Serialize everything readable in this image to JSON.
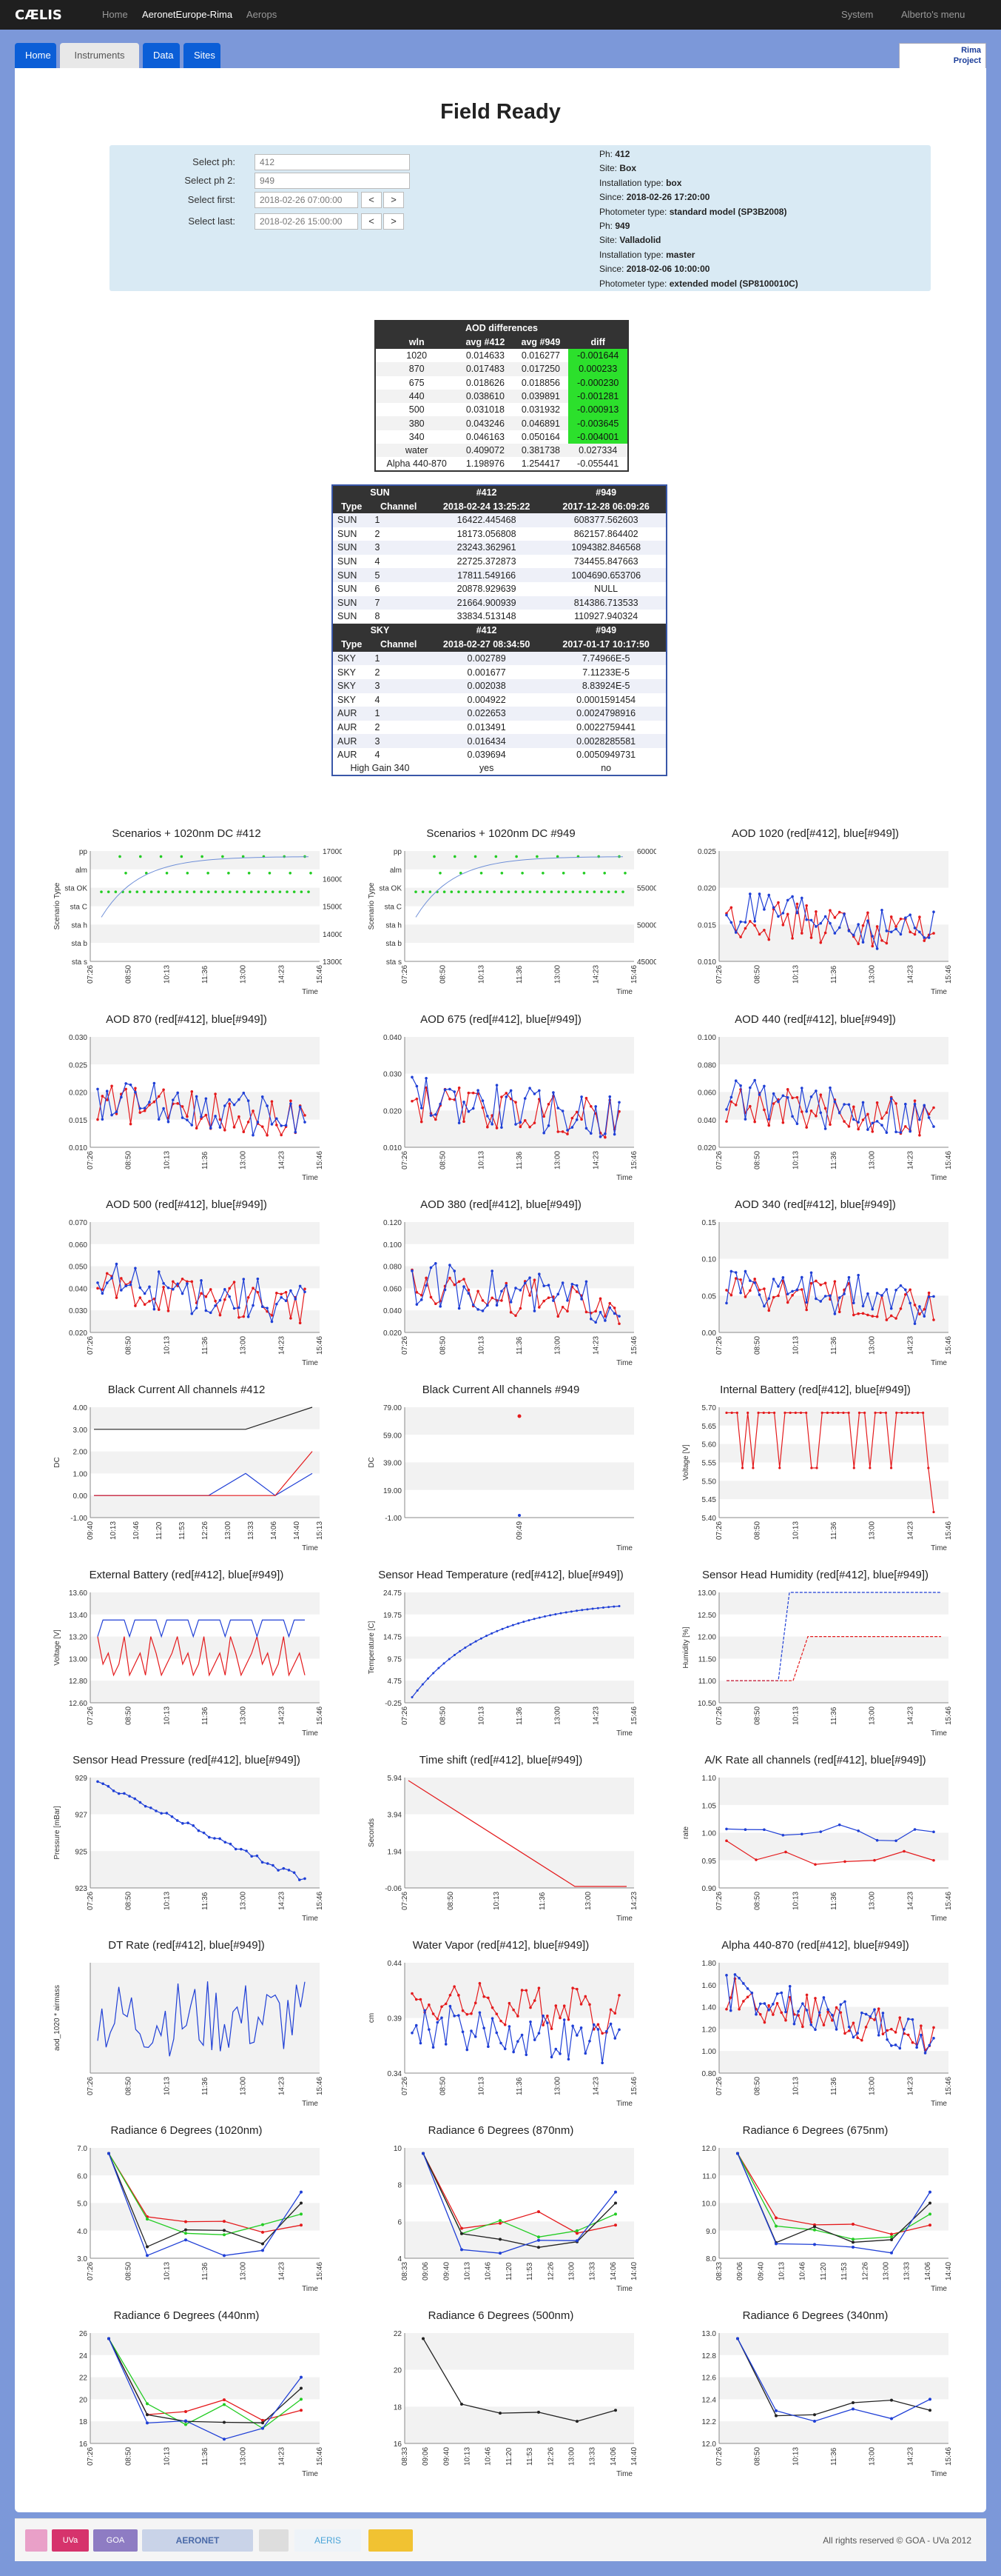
{
  "nav": {
    "logo": "CÆLIS",
    "items": [
      "Home",
      "AeronetEurope-Rima",
      "Aerops"
    ],
    "system": "System",
    "user": "Alberto's menu"
  },
  "tabs": [
    "Home",
    "Instruments",
    "Data",
    "Sites"
  ],
  "project": {
    "line1": "Rima",
    "line2": "Project"
  },
  "page_title": "Field Ready",
  "selectors": {
    "labels": [
      "Select ph:",
      "Select ph 2:",
      "Select first:",
      "Select last:"
    ],
    "ph1": "412",
    "ph2": "949",
    "first": "2018-02-26 07:00:00",
    "last": "2018-02-26 15:00:00",
    "prev": "<",
    "next": ">"
  },
  "info": [
    [
      "Ph: ",
      "412"
    ],
    [
      "Site: ",
      "Box"
    ],
    [
      "Installation type: ",
      "box"
    ],
    [
      "Since: ",
      "2018-02-26 17:20:00"
    ],
    [
      "Photometer type: ",
      "standard model (SP3B2008)"
    ],
    [
      "Ph: ",
      "949"
    ],
    [
      "Site: ",
      "Valladolid"
    ],
    [
      "Installation type: ",
      "master"
    ],
    [
      "Since: ",
      "2018-02-06 10:00:00"
    ],
    [
      "Photometer type: ",
      "extended model (SP8100010C)"
    ]
  ],
  "aod_table": {
    "title": "AOD differences",
    "headers": [
      "wln",
      "avg #412",
      "avg #949",
      "diff"
    ],
    "rows": [
      [
        "1020",
        "0.014633",
        "0.016277",
        "-0.001644",
        true
      ],
      [
        "870",
        "0.017483",
        "0.017250",
        "0.000233",
        true
      ],
      [
        "675",
        "0.018626",
        "0.018856",
        "-0.000230",
        true
      ],
      [
        "440",
        "0.038610",
        "0.039891",
        "-0.001281",
        true
      ],
      [
        "500",
        "0.031018",
        "0.031932",
        "-0.000913",
        true
      ],
      [
        "380",
        "0.043246",
        "0.046891",
        "-0.003645",
        true
      ],
      [
        "340",
        "0.046163",
        "0.050164",
        "-0.004001",
        true
      ],
      [
        "water",
        "0.409072",
        "0.381738",
        "0.027334",
        false
      ],
      [
        "Alpha 440-870",
        "1.198976",
        "1.254417",
        "-0.055441",
        false
      ]
    ]
  },
  "sun_table": {
    "sun_head": [
      "SUN",
      "#412",
      "#949"
    ],
    "sun_dates": [
      "Type",
      "Channel",
      "2018-02-24 13:25:22",
      "2017-12-28 06:09:26"
    ],
    "sun_rows": [
      [
        "SUN",
        "1",
        "16422.445468",
        "608377.562603"
      ],
      [
        "SUN",
        "2",
        "18173.056808",
        "862157.864402"
      ],
      [
        "SUN",
        "3",
        "23243.362961",
        "1094382.846568"
      ],
      [
        "SUN",
        "4",
        "22725.372873",
        "734455.847663"
      ],
      [
        "SUN",
        "5",
        "17811.549166",
        "1004690.653706"
      ],
      [
        "SUN",
        "6",
        "20878.929639",
        "NULL"
      ],
      [
        "SUN",
        "7",
        "21664.900939",
        "814386.713533"
      ],
      [
        "SUN",
        "8",
        "33834.513148",
        "110927.940324"
      ]
    ],
    "sky_head": [
      "SKY",
      "#412",
      "#949"
    ],
    "sky_dates": [
      "Type",
      "Channel",
      "2018-02-27 08:34:50",
      "2017-01-17 10:17:50"
    ],
    "sky_rows": [
      [
        "SKY",
        "1",
        "0.002789",
        "7.74966E-5"
      ],
      [
        "SKY",
        "2",
        "0.001677",
        "7.11233E-5"
      ],
      [
        "SKY",
        "3",
        "0.002038",
        "8.83924E-5"
      ],
      [
        "SKY",
        "4",
        "0.004922",
        "0.0001591454"
      ],
      [
        "AUR",
        "1",
        "0.022653",
        "0.0024798916"
      ],
      [
        "AUR",
        "2",
        "0.013491",
        "0.0022759441"
      ],
      [
        "AUR",
        "3",
        "0.016434",
        "0.0028285581"
      ],
      [
        "AUR",
        "4",
        "0.039694",
        "0.0050949731"
      ]
    ],
    "gain": [
      "High Gain 340",
      "yes",
      "no"
    ]
  },
  "colors": {
    "red": "#e41a1c",
    "blue": "#1f3fd6",
    "green": "#22cc22",
    "black": "#222222"
  },
  "charts": [
    {
      "t": "Scenarios + 1020nm DC #412",
      "kind": "scen",
      "yt": [
        "pp",
        "alm",
        "sta OK",
        "sta C",
        "sta h",
        "sta b",
        "sta s"
      ],
      "y2": [
        "17000",
        "16000",
        "15000",
        "14000",
        "13000"
      ],
      "xt": [
        "07:26",
        "08:50",
        "10:13",
        "11:36",
        "13:00",
        "14:23",
        "15:46"
      ],
      "xl": "Time",
      "yl": "Scenario Type"
    },
    {
      "t": "Scenarios + 1020nm DC #949",
      "kind": "scen",
      "yt": [
        "pp",
        "alm",
        "sta OK",
        "sta C",
        "sta h",
        "sta b",
        "sta s"
      ],
      "y2": [
        "600000",
        "550000",
        "500000",
        "450000"
      ],
      "xt": [
        "07:26",
        "08:50",
        "10:13",
        "11:36",
        "13:00",
        "14:23",
        "15:46"
      ],
      "xl": "Time",
      "yl": "Scenario Type"
    },
    {
      "t": "AOD 1020 (red[#412], blue[#949])",
      "kind": "aod",
      "yt": [
        "0.025",
        "0.020",
        "0.015",
        "0.010"
      ],
      "xt": [
        "07:26",
        "08:50",
        "10:13",
        "11:36",
        "13:00",
        "14:23",
        "15:46"
      ],
      "xl": "Time",
      "yl": ""
    },
    {
      "t": "AOD 870 (red[#412], blue[#949])",
      "kind": "aod",
      "yt": [
        "0.030",
        "0.025",
        "0.020",
        "0.015",
        "0.010"
      ],
      "xt": [
        "07:26",
        "08:50",
        "10:13",
        "11:36",
        "13:00",
        "14:23",
        "15:46"
      ],
      "xl": "Time",
      "yl": ""
    },
    {
      "t": "AOD 675 (red[#412], blue[#949])",
      "kind": "aod",
      "yt": [
        "0.040",
        "0.030",
        "0.020",
        "0.010"
      ],
      "xt": [
        "07:26",
        "08:50",
        "10:13",
        "11:36",
        "13:00",
        "14:23",
        "15:46"
      ],
      "xl": "Time",
      "yl": ""
    },
    {
      "t": "AOD 440 (red[#412], blue[#949])",
      "kind": "aod",
      "yt": [
        "0.100",
        "0.080",
        "0.060",
        "0.040",
        "0.020"
      ],
      "xt": [
        "07:26",
        "08:50",
        "10:13",
        "11:36",
        "13:00",
        "14:23",
        "15:46"
      ],
      "xl": "Time",
      "yl": ""
    },
    {
      "t": "AOD 500 (red[#412], blue[#949])",
      "kind": "aod",
      "yt": [
        "0.070",
        "0.060",
        "0.050",
        "0.040",
        "0.030",
        "0.020"
      ],
      "xt": [
        "07:26",
        "08:50",
        "10:13",
        "11:36",
        "13:00",
        "14:23",
        "15:46"
      ],
      "xl": "Time",
      "yl": ""
    },
    {
      "t": "AOD 380 (red[#412], blue[#949])",
      "kind": "aod",
      "yt": [
        "0.120",
        "0.100",
        "0.080",
        "0.060",
        "0.040",
        "0.020"
      ],
      "xt": [
        "07:26",
        "08:50",
        "10:13",
        "11:36",
        "13:00",
        "14:23",
        "15:46"
      ],
      "xl": "Time",
      "yl": ""
    },
    {
      "t": "AOD 340 (red[#412], blue[#949])",
      "kind": "aod",
      "yt": [
        "0.15",
        "0.10",
        "0.05",
        "0.00"
      ],
      "xt": [
        "07:26",
        "08:50",
        "10:13",
        "11:36",
        "13:00",
        "14:23",
        "15:46"
      ],
      "xl": "Time",
      "yl": ""
    },
    {
      "t": "Black Current All channels #412",
      "kind": "bc",
      "yt": [
        "4.00",
        "3.00",
        "2.00",
        "1.00",
        "0.00",
        "-1.00"
      ],
      "xt": [
        "09:40",
        "10:13",
        "10:46",
        "11:20",
        "11:53",
        "12:26",
        "13:00",
        "13:33",
        "14:06",
        "14:40",
        "15:13"
      ],
      "xl": "Time",
      "yl": "DC"
    },
    {
      "t": "Black Current All channels #949",
      "kind": "bc2",
      "yt": [
        "79.00",
        "59.00",
        "39.00",
        "19.00",
        "-1.00"
      ],
      "xt": [
        "09:49"
      ],
      "xl": "Time",
      "yl": "DC"
    },
    {
      "t": "Internal Battery (red[#412], blue[#949])",
      "kind": "ibat",
      "yt": [
        "5.70",
        "5.65",
        "5.60",
        "5.55",
        "5.50",
        "5.45",
        "5.40"
      ],
      "xt": [
        "07:26",
        "08:50",
        "10:13",
        "11:36",
        "13:00",
        "14:23",
        "15:46"
      ],
      "xl": "Time",
      "yl": "Voltage [V]"
    },
    {
      "t": "External Battery (red[#412], blue[#949])",
      "kind": "ebat",
      "yt": [
        "13.60",
        "13.40",
        "13.20",
        "13.00",
        "12.80",
        "12.60"
      ],
      "xt": [
        "07:26",
        "08:50",
        "10:13",
        "11:36",
        "13:00",
        "14:23",
        "15:46"
      ],
      "xl": "Time",
      "yl": "Voltage [V]"
    },
    {
      "t": "Sensor Head Temperature (red[#412], blue[#949])",
      "kind": "temp",
      "yt": [
        "24.75",
        "19.75",
        "14.75",
        "9.75",
        "4.75",
        "-0.25"
      ],
      "xt": [
        "07:26",
        "08:50",
        "10:13",
        "11:36",
        "13:00",
        "14:23",
        "15:46"
      ],
      "xl": "Time",
      "yl": "Temperature [C]"
    },
    {
      "t": "Sensor Head Humidity (red[#412], blue[#949])",
      "kind": "hum",
      "yt": [
        "13.00",
        "12.50",
        "12.00",
        "11.50",
        "11.00",
        "10.50"
      ],
      "xt": [
        "07:26",
        "08:50",
        "10:13",
        "11:36",
        "13:00",
        "14:23",
        "15:46"
      ],
      "xl": "Time",
      "yl": "Humidity [%]"
    },
    {
      "t": "Sensor Head Pressure (red[#412], blue[#949])",
      "kind": "pres",
      "yt": [
        "929",
        "927",
        "925",
        "923"
      ],
      "xt": [
        "07:26",
        "08:50",
        "10:13",
        "11:36",
        "13:00",
        "14:23",
        "15:46"
      ],
      "xl": "Time",
      "yl": "Pressure [mBar]"
    },
    {
      "t": "Time shift (red[#412], blue[#949])",
      "kind": "tshift",
      "yt": [
        "5.94",
        "3.94",
        "1.94",
        "-0.06"
      ],
      "xt": [
        "07:26",
        "08:50",
        "10:13",
        "11:36",
        "13:00",
        "14:23"
      ],
      "xl": "Time",
      "yl": "Seconds"
    },
    {
      "t": "A/K Rate all channels (red[#412], blue[#949])",
      "kind": "ak",
      "yt": [
        "1.10",
        "1.05",
        "1.00",
        "0.95",
        "0.90"
      ],
      "xt": [
        "07:26",
        "08:50",
        "10:13",
        "11:36",
        "13:00",
        "14:23",
        "15:46"
      ],
      "xl": "Time",
      "yl": "rate"
    },
    {
      "t": "DT Rate (red[#412], blue[#949])",
      "kind": "dt",
      "yt": [],
      "xt": [
        "07:26",
        "08:50",
        "10:13",
        "11:36",
        "13:00",
        "14:23",
        "15:46"
      ],
      "xl": "Time",
      "yl": "aod_1020 * airmass"
    },
    {
      "t": "Water Vapor (red[#412], blue[#949])",
      "kind": "wv",
      "yt": [
        "0.44",
        "0.39",
        "0.34"
      ],
      "xt": [
        "07:26",
        "08:50",
        "10:13",
        "11:36",
        "13:00",
        "14:23",
        "15:46"
      ],
      "xl": "Time",
      "yl": "cm"
    },
    {
      "t": "Alpha 440-870 (red[#412], blue[#949])",
      "kind": "alpha",
      "yt": [
        "1.80",
        "1.60",
        "1.40",
        "1.20",
        "1.00",
        "0.80"
      ],
      "xt": [
        "07:26",
        "08:50",
        "10:13",
        "11:36",
        "13:00",
        "14:23",
        "15:46"
      ],
      "xl": "Time",
      "yl": ""
    },
    {
      "t": "Radiance 6 Degrees (1020nm)",
      "kind": "rad",
      "yt": [
        "7.0",
        "6.0",
        "5.0",
        "4.0",
        "3.0"
      ],
      "xt": [
        "07:26",
        "08:50",
        "10:13",
        "11:36",
        "13:00",
        "14:23",
        "15:46"
      ],
      "xl": "Time",
      "yl": ""
    },
    {
      "t": "Radiance 6 Degrees (870nm)",
      "kind": "rad",
      "yt": [
        "10",
        "8",
        "6",
        "4"
      ],
      "xt": [
        "08:33",
        "09:06",
        "09:40",
        "10:13",
        "10:46",
        "11:20",
        "11:53",
        "12:26",
        "13:00",
        "13:33",
        "14:06",
        "14:40"
      ],
      "xl": "Time",
      "yl": ""
    },
    {
      "t": "Radiance 6 Degrees (675nm)",
      "kind": "rad",
      "yt": [
        "12.0",
        "11.0",
        "10.0",
        "9.0",
        "8.0"
      ],
      "xt": [
        "08:33",
        "09:06",
        "09:40",
        "10:13",
        "10:46",
        "11:20",
        "11:53",
        "12:26",
        "13:00",
        "13:33",
        "14:06",
        "14:40"
      ],
      "xl": "Time",
      "yl": ""
    },
    {
      "t": "Radiance 6 Degrees (440nm)",
      "kind": "rad",
      "yt": [
        "26",
        "24",
        "22",
        "20",
        "18",
        "16"
      ],
      "xt": [
        "07:26",
        "08:50",
        "10:13",
        "11:36",
        "13:00",
        "14:23",
        "15:46"
      ],
      "xl": "Time",
      "yl": ""
    },
    {
      "t": "Radiance 6 Degrees (500nm)",
      "kind": "rad2",
      "yt": [
        "22",
        "20",
        "18",
        "16"
      ],
      "xt": [
        "08:33",
        "09:06",
        "09:40",
        "10:13",
        "10:46",
        "11:20",
        "11:53",
        "12:26",
        "13:00",
        "13:33",
        "14:06",
        "14:40"
      ],
      "xl": "Time",
      "yl": ""
    },
    {
      "t": "Radiance 6 Degrees (340nm)",
      "kind": "rad3",
      "yt": [
        "13.0",
        "12.8",
        "12.6",
        "12.4",
        "12.2",
        "12.0"
      ],
      "xt": [
        "07:26",
        "08:50",
        "10:13",
        "11:36",
        "13:00",
        "14:23",
        "15:46"
      ],
      "xl": "Time",
      "yl": ""
    }
  ],
  "footer": {
    "logos": [
      "UVa",
      "GOA",
      "AERONET",
      "AERIS"
    ],
    "copyright": "All rights reserved © GOA - UVa 2012"
  }
}
